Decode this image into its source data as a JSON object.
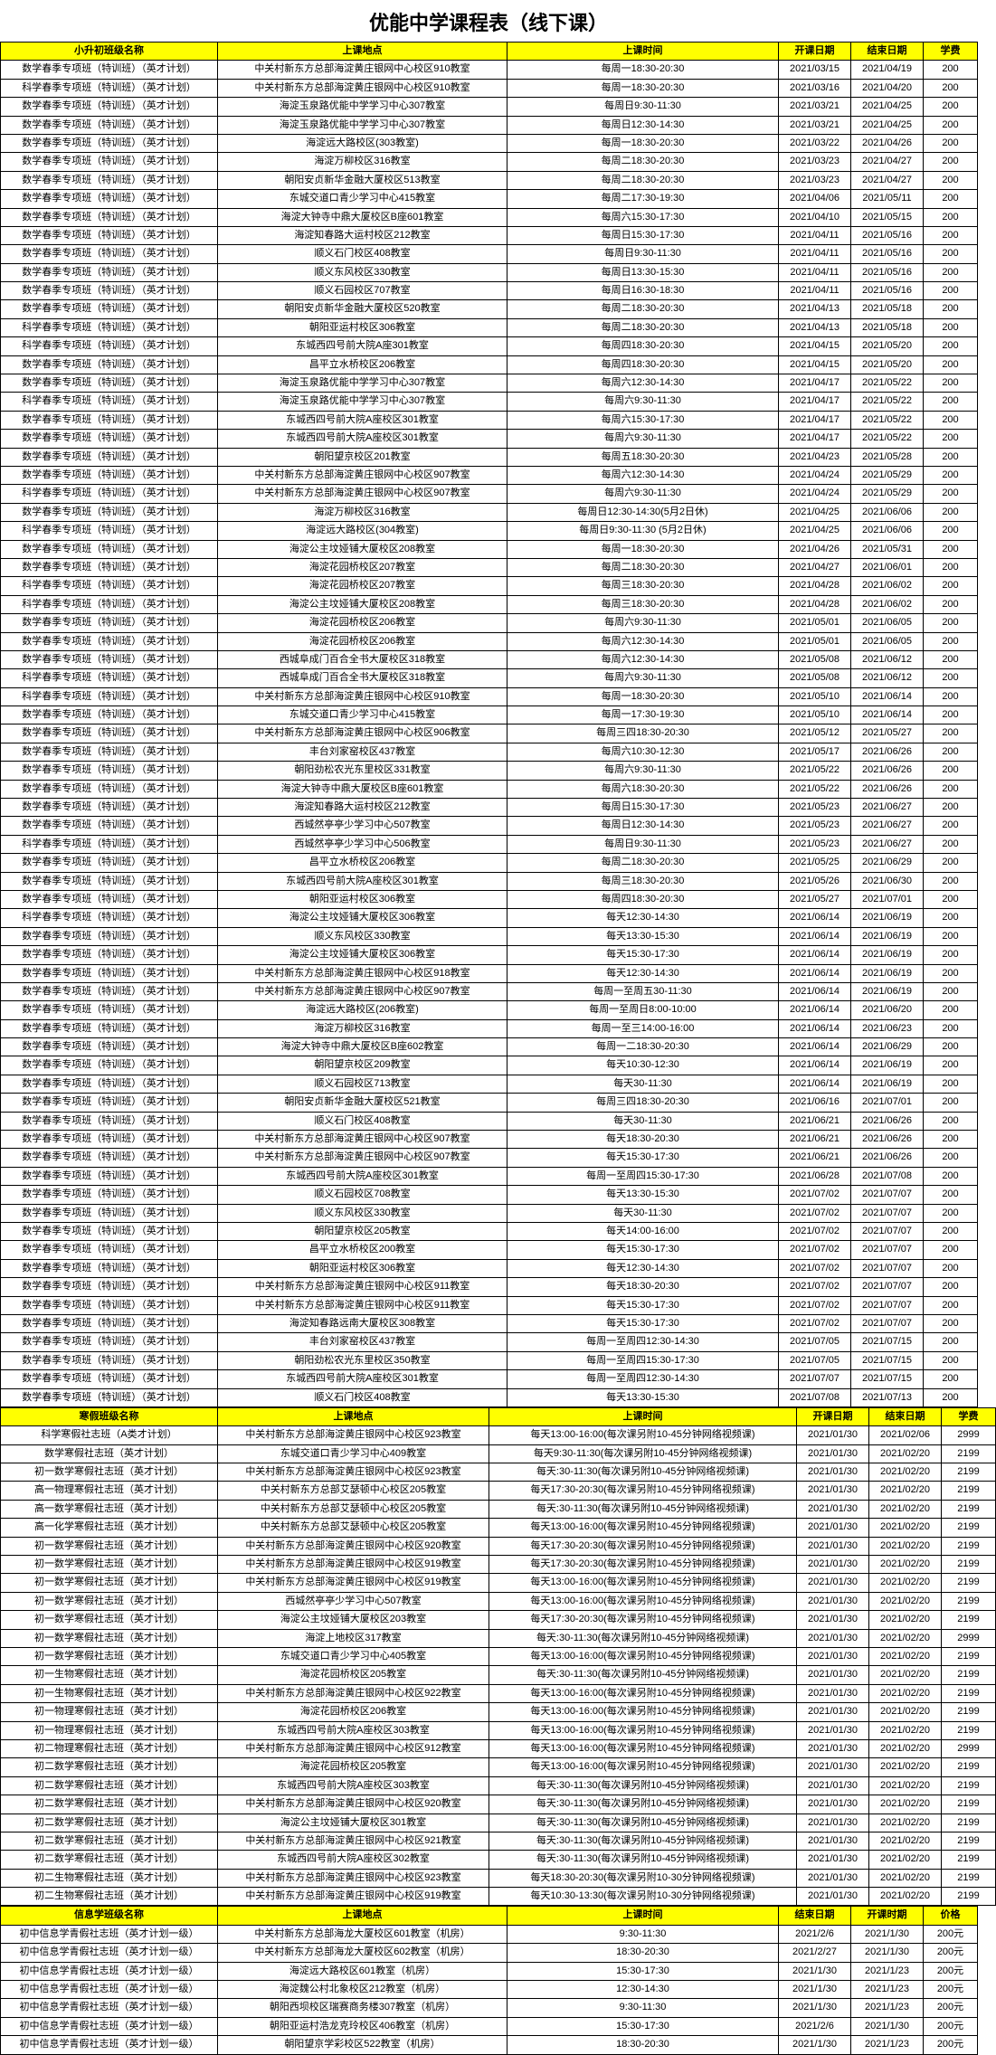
{
  "page_title": "优能中学课程表（线下课）",
  "sections": [
    {
      "headers": [
        "小升初班级名称",
        "上课地点",
        "上课时间",
        "开课日期",
        "结束日期",
        "学费"
      ],
      "rows": [
        [
          "数学春季专项班（特训班）（英才计划）",
          "中关村新东方总部海淀黄庄银网中心校区910教室",
          "每周一18:30-20:30",
          "2021/03/15",
          "2021/04/19",
          "200"
        ],
        [
          "科学春季专项班（特训班）（英才计划）",
          "中关村新东方总部海淀黄庄银网中心校区910教室",
          "每周一18:30-20:30",
          "2021/03/16",
          "2021/04/20",
          "200"
        ],
        [
          "数学春季专项班（特训班）（英才计划）",
          "海淀玉泉路优能中学学习中心307教室",
          "每周日9:30-11:30",
          "2021/03/21",
          "2021/04/25",
          "200"
        ],
        [
          "数学春季专项班（特训班）（英才计划）",
          "海淀玉泉路优能中学学习中心307教室",
          "每周日12:30-14:30",
          "2021/03/21",
          "2021/04/25",
          "200"
        ],
        [
          "数学春季专项班（特训班）（英才计划）",
          "海淀远大路校区(303教室)",
          "每周一18:30-20:30",
          "2021/03/22",
          "2021/04/26",
          "200"
        ],
        [
          "数学春季专项班（特训班）（英才计划）",
          "海淀万柳校区316教室",
          "每周二18:30-20:30",
          "2021/03/23",
          "2021/04/27",
          "200"
        ],
        [
          "数学春季专项班（特训班）（英才计划）",
          "朝阳安贞新华金融大厦校区513教室",
          "每周二18:30-20:30",
          "2021/03/23",
          "2021/04/27",
          "200"
        ],
        [
          "数学春季专项班（特训班）（英才计划）",
          "东城交道口青少学习中心415教室",
          "每周二17:30-19:30",
          "2021/04/06",
          "2021/05/11",
          "200"
        ],
        [
          "数学春季专项班（特训班）（英才计划）",
          "海淀大钟寺中鼎大厦校区B座601教室",
          "每周六15:30-17:30",
          "2021/04/10",
          "2021/05/15",
          "200"
        ],
        [
          "数学春季专项班（特训班）（英才计划）",
          "海淀知春路大运村校区212教室",
          "每周日15:30-17:30",
          "2021/04/11",
          "2021/05/16",
          "200"
        ],
        [
          "数学春季专项班（特训班）（英才计划）",
          "顺义石门校区408教室",
          "每周日9:30-11:30",
          "2021/04/11",
          "2021/05/16",
          "200"
        ],
        [
          "数学春季专项班（特训班）（英才计划）",
          "顺义东风校区330教室",
          "每周日13:30-15:30",
          "2021/04/11",
          "2021/05/16",
          "200"
        ],
        [
          "数学春季专项班（特训班）（英才计划）",
          "顺义石园校区707教室",
          "每周日16:30-18:30",
          "2021/04/11",
          "2021/05/16",
          "200"
        ],
        [
          "数学春季专项班（特训班）（英才计划）",
          "朝阳安贞新华金融大厦校区520教室",
          "每周二18:30-20:30",
          "2021/04/13",
          "2021/05/18",
          "200"
        ],
        [
          "科学春季专项班（特训班）（英才计划）",
          "朝阳亚运村校区306教室",
          "每周二18:30-20:30",
          "2021/04/13",
          "2021/05/18",
          "200"
        ],
        [
          "科学春季专项班（特训班）（英才计划）",
          "东城西四号前大院A座301教室",
          "每周四18:30-20:30",
          "2021/04/15",
          "2021/05/20",
          "200"
        ],
        [
          "数学春季专项班（特训班）（英才计划）",
          "昌平立水桥校区206教室",
          "每周四18:30-20:30",
          "2021/04/15",
          "2021/05/20",
          "200"
        ],
        [
          "数学春季专项班（特训班）（英才计划）",
          "海淀玉泉路优能中学学习中心307教室",
          "每周六12:30-14:30",
          "2021/04/17",
          "2021/05/22",
          "200"
        ],
        [
          "科学春季专项班（特训班）（英才计划）",
          "海淀玉泉路优能中学学习中心307教室",
          "每周六9:30-11:30",
          "2021/04/17",
          "2021/05/22",
          "200"
        ],
        [
          "数学春季专项班（特训班）（英才计划）",
          "东城西四号前大院A座校区301教室",
          "每周六15:30-17:30",
          "2021/04/17",
          "2021/05/22",
          "200"
        ],
        [
          "数学春季专项班（特训班）（英才计划）",
          "东城西四号前大院A座校区301教室",
          "每周六9:30-11:30",
          "2021/04/17",
          "2021/05/22",
          "200"
        ],
        [
          "数学春季专项班（特训班）（英才计划）",
          "朝阳望京校区201教室",
          "每周五18:30-20:30",
          "2021/04/23",
          "2021/05/28",
          "200"
        ],
        [
          "数学春季专项班（特训班）（英才计划）",
          "中关村新东方总部海淀黄庄银网中心校区907教室",
          "每周六12:30-14:30",
          "2021/04/24",
          "2021/05/29",
          "200"
        ],
        [
          "科学春季专项班（特训班）（英才计划）",
          "中关村新东方总部海淀黄庄银网中心校区907教室",
          "每周六9:30-11:30",
          "2021/04/24",
          "2021/05/29",
          "200"
        ],
        [
          "数学春季专项班（特训班）（英才计划）",
          "海淀万柳校区316教室",
          "每周日12:30-14:30(5月2日休)",
          "2021/04/25",
          "2021/06/06",
          "200"
        ],
        [
          "科学春季专项班（特训班）（英才计划）",
          "海淀远大路校区(304教室)",
          "每周日9:30-11:30 (5月2日休)",
          "2021/04/25",
          "2021/06/06",
          "200"
        ],
        [
          "数学春季专项班（特训班）（英才计划）",
          "海淀公主坟娅铺大厦校区208教室",
          "每周一18:30-20:30",
          "2021/04/26",
          "2021/05/31",
          "200"
        ],
        [
          "数学春季专项班（特训班）（英才计划）",
          "海淀花园桥校区207教室",
          "每周二18:30-20:30",
          "2021/04/27",
          "2021/06/01",
          "200"
        ],
        [
          "科学春季专项班（特训班）（英才计划）",
          "海淀花园桥校区207教室",
          "每周三18:30-20:30",
          "2021/04/28",
          "2021/06/02",
          "200"
        ],
        [
          "科学春季专项班（特训班）（英才计划）",
          "海淀公主坟娅铺大厦校区208教室",
          "每周三18:30-20:30",
          "2021/04/28",
          "2021/06/02",
          "200"
        ],
        [
          "数学春季专项班（特训班）（英才计划）",
          "海淀花园桥校区206教室",
          "每周六9:30-11:30",
          "2021/05/01",
          "2021/06/05",
          "200"
        ],
        [
          "数学春季专项班（特训班）（英才计划）",
          "海淀花园桥校区206教室",
          "每周六12:30-14:30",
          "2021/05/01",
          "2021/06/05",
          "200"
        ],
        [
          "数学春季专项班（特训班）（英才计划）",
          "西城阜成门百合全书大厦校区318教室",
          "每周六12:30-14:30",
          "2021/05/08",
          "2021/06/12",
          "200"
        ],
        [
          "科学春季专项班（特训班）（英才计划）",
          "西城阜成门百合全书大厦校区318教室",
          "每周六9:30-11:30",
          "2021/05/08",
          "2021/06/12",
          "200"
        ],
        [
          "科学春季专项班（特训班）（英才计划）",
          "中关村新东方总部海淀黄庄银网中心校区910教室",
          "每周一18:30-20:30",
          "2021/05/10",
          "2021/06/14",
          "200"
        ],
        [
          "数学春季专项班（特训班）（英才计划）",
          "东城交道口青少学习中心415教室",
          "每周一17:30-19:30",
          "2021/05/10",
          "2021/06/14",
          "200"
        ],
        [
          "数学春季专项班（特训班）（英才计划）",
          "中关村新东方总部海淀黄庄银网中心校区906教室",
          "每周三四18:30-20:30",
          "2021/05/12",
          "2021/05/27",
          "200"
        ],
        [
          "数学春季专项班（特训班）（英才计划）",
          "丰台刘家窑校区437教室",
          "每周六10:30-12:30",
          "2021/05/17",
          "2021/06/26",
          "200"
        ],
        [
          "数学春季专项班（特训班）（英才计划）",
          "朝阳劲松农光东里校区331教室",
          "每周六9:30-11:30",
          "2021/05/22",
          "2021/06/26",
          "200"
        ],
        [
          "数学春季专项班（特训班）（英才计划）",
          "海淀大钟寺中鼎大厦校区B座601教室",
          "每周六18:30-20:30",
          "2021/05/22",
          "2021/06/26",
          "200"
        ],
        [
          "数学春季专项班（特训班）（英才计划）",
          "海淀知春路大运村校区212教室",
          "每周日15:30-17:30",
          "2021/05/23",
          "2021/06/27",
          "200"
        ],
        [
          "数学春季专项班（特训班）（英才计划）",
          "西城然亭亭少学习中心507教室",
          "每周日12:30-14:30",
          "2021/05/23",
          "2021/06/27",
          "200"
        ],
        [
          "科学春季专项班（特训班）（英才计划）",
          "西城然亭亭少学习中心506教室",
          "每周日9:30-11:30",
          "2021/05/23",
          "2021/06/27",
          "200"
        ],
        [
          "数学春季专项班（特训班）（英才计划）",
          "昌平立水桥校区206教室",
          "每周二18:30-20:30",
          "2021/05/25",
          "2021/06/29",
          "200"
        ],
        [
          "数学春季专项班（特训班）（英才计划）",
          "东城西四号前大院A座校区301教室",
          "每周三18:30-20:30",
          "2021/05/26",
          "2021/06/30",
          "200"
        ],
        [
          "数学春季专项班（特训班）（英才计划）",
          "朝阳亚运村校区306教室",
          "每周四18:30-20:30",
          "2021/05/27",
          "2021/07/01",
          "200"
        ],
        [
          "科学春季专项班（特训班）（英才计划）",
          "海淀公主坟娅铺大厦校区306教室",
          "每天12:30-14:30",
          "2021/06/14",
          "2021/06/19",
          "200"
        ],
        [
          "数学春季专项班（特训班）（英才计划）",
          "顺义东风校区330教室",
          "每天13:30-15:30",
          "2021/06/14",
          "2021/06/19",
          "200"
        ],
        [
          "数学春季专项班（特训班）（英才计划）",
          "海淀公主坟娅铺大厦校区306教室",
          "每天15:30-17:30",
          "2021/06/14",
          "2021/06/19",
          "200"
        ],
        [
          "数学春季专项班（特训班）（英才计划）",
          "中关村新东方总部海淀黄庄银网中心校区918教室",
          "每天12:30-14:30",
          "2021/06/14",
          "2021/06/19",
          "200"
        ],
        [
          "数学春季专项班（特训班）（英才计划）",
          "中关村新东方总部海淀黄庄银网中心校区907教室",
          "每周一至周五30-11:30",
          "2021/06/14",
          "2021/06/19",
          "200"
        ],
        [
          "数学春季专项班（特训班）（英才计划）",
          "海淀远大路校区(206教室)",
          "每周一至周日8:00-10:00",
          "2021/06/14",
          "2021/06/20",
          "200"
        ],
        [
          "数学春季专项班（特训班）（英才计划）",
          "海淀万柳校区316教室",
          "每周一至三14:00-16:00",
          "2021/06/14",
          "2021/06/23",
          "200"
        ],
        [
          "数学春季专项班（特训班）（英才计划）",
          "海淀大钟寺中鼎大厦校区B座602教室",
          "每周一二18:30-20:30",
          "2021/06/14",
          "2021/06/29",
          "200"
        ],
        [
          "数学春季专项班（特训班）（英才计划）",
          "朝阳望京校区209教室",
          "每天10:30-12:30",
          "2021/06/14",
          "2021/06/19",
          "200"
        ],
        [
          "数学春季专项班（特训班）（英才计划）",
          "顺义石园校区713教室",
          "每天30-11:30",
          "2021/06/14",
          "2021/06/19",
          "200"
        ],
        [
          "数学春季专项班（特训班）（英才计划）",
          "朝阳安贞新华金融大厦校区521教室",
          "每周三四18:30-20:30",
          "2021/06/16",
          "2021/07/01",
          "200"
        ],
        [
          "数学春季专项班（特训班）（英才计划）",
          "顺义石门校区408教室",
          "每天30-11:30",
          "2021/06/21",
          "2021/06/26",
          "200"
        ],
        [
          "数学春季专项班（特训班）（英才计划）",
          "中关村新东方总部海淀黄庄银网中心校区907教室",
          "每天18:30-20:30",
          "2021/06/21",
          "2021/06/26",
          "200"
        ],
        [
          "数学春季专项班（特训班）（英才计划）",
          "中关村新东方总部海淀黄庄银网中心校区907教室",
          "每天15:30-17:30",
          "2021/06/21",
          "2021/06/26",
          "200"
        ],
        [
          "数学春季专项班（特训班）（英才计划）",
          "东城西四号前大院A座校区301教室",
          "每周一至周四15:30-17:30",
          "2021/06/28",
          "2021/07/08",
          "200"
        ],
        [
          "数学春季专项班（特训班）（英才计划）",
          "顺义石园校区708教室",
          "每天13:30-15:30",
          "2021/07/02",
          "2021/07/07",
          "200"
        ],
        [
          "数学春季专项班（特训班）（英才计划）",
          "顺义东风校区330教室",
          "每天30-11:30",
          "2021/07/02",
          "2021/07/07",
          "200"
        ],
        [
          "数学春季专项班（特训班）（英才计划）",
          "朝阳望京校区205教室",
          "每天14:00-16:00",
          "2021/07/02",
          "2021/07/07",
          "200"
        ],
        [
          "数学春季专项班（特训班）（英才计划）",
          "昌平立水桥校区200教室",
          "每天15:30-17:30",
          "2021/07/02",
          "2021/07/07",
          "200"
        ],
        [
          "数学春季专项班（特训班）（英才计划）",
          "朝阳亚运村校区306教室",
          "每天12:30-14:30",
          "2021/07/02",
          "2021/07/07",
          "200"
        ],
        [
          "数学春季专项班（特训班）（英才计划）",
          "中关村新东方总部海淀黄庄银网中心校区911教室",
          "每天18:30-20:30",
          "2021/07/02",
          "2021/07/07",
          "200"
        ],
        [
          "数学春季专项班（特训班）（英才计划）",
          "中关村新东方总部海淀黄庄银网中心校区911教室",
          "每天15:30-17:30",
          "2021/07/02",
          "2021/07/07",
          "200"
        ],
        [
          "数学春季专项班（特训班）（英才计划）",
          "海淀知春路远南大厦校区308教室",
          "每天15:30-17:30",
          "2021/07/02",
          "2021/07/07",
          "200"
        ],
        [
          "数学春季专项班（特训班）（英才计划）",
          "丰台刘家窑校区437教室",
          "每周一至周四12:30-14:30",
          "2021/07/05",
          "2021/07/15",
          "200"
        ],
        [
          "数学春季专项班（特训班）（英才计划）",
          "朝阳劲松农光东里校区350教室",
          "每周一至周四15:30-17:30",
          "2021/07/05",
          "2021/07/15",
          "200"
        ],
        [
          "数学春季专项班（特训班）（英才计划）",
          "东城西四号前大院A座校区301教室",
          "每周一至周四12:30-14:30",
          "2021/07/07",
          "2021/07/15",
          "200"
        ],
        [
          "数学春季专项班（特训班）（英才计划）",
          "顺义石门校区408教室",
          "每天13:30-15:30",
          "2021/07/08",
          "2021/07/13",
          "200"
        ]
      ]
    },
    {
      "headers": [
        "寒假班级名称",
        "上课地点",
        "上课时间",
        "开课日期",
        "结束日期",
        "学费"
      ],
      "rows": [
        [
          "科学寒假社志班（A类才计划）",
          "中关村新东方总部海淀黄庄银网中心校区923教室",
          "每天13:00-16:00(每次课另附10-45分钟网络视频课)",
          "2021/01/30",
          "2021/02/06",
          "2999"
        ],
        [
          "数学寒假社志班（英才计划）",
          "东城交道口青少学习中心409教室",
          "每天9:30-11:30(每次课另附10-45分钟网络视频课)",
          "2021/01/30",
          "2021/02/20",
          "2199"
        ],
        [
          "初一数学寒假社志班（英才计划）",
          "中关村新东方总部海淀黄庄银网中心校区923教室",
          "每天:30-11:30(每次课另附10-45分钟网络视频课)",
          "2021/01/30",
          "2021/02/20",
          "2199"
        ],
        [
          "高一物理寒假社志班（英才计划）",
          "中关村新东方总部艾瑟顿中心校区205教室",
          "每天17:30-20:30(每次课另附10-45分钟网络视频课)",
          "2021/01/30",
          "2021/02/20",
          "2199"
        ],
        [
          "高一数学寒假社志班（英才计划）",
          "中关村新东方总部艾瑟顿中心校区205教室",
          "每天:30-11:30(每次课另附10-45分钟网络视频课)",
          "2021/01/30",
          "2021/02/20",
          "2199"
        ],
        [
          "高一化学寒假社志班（英才计划）",
          "中关村新东方总部艾瑟顿中心校区205教室",
          "每天13:00-16:00(每次课另附10-45分钟网络视频课)",
          "2021/01/30",
          "2021/02/20",
          "2199"
        ],
        [
          "初一数学寒假社志班（英才计划）",
          "中关村新东方总部海淀黄庄银网中心校区920教室",
          "每天17:30-20:30(每次课另附10-45分钟网络视频课)",
          "2021/01/30",
          "2021/02/20",
          "2199"
        ],
        [
          "初一数学寒假社志班（英才计划）",
          "中关村新东方总部海淀黄庄银网中心校区919教室",
          "每天17:30-20:30(每次课另附10-45分钟网络视频课)",
          "2021/01/30",
          "2021/02/20",
          "2199"
        ],
        [
          "初一数学寒假社志班（英才计划）",
          "中关村新东方总部海淀黄庄银网中心校区919教室",
          "每天13:00-16:00(每次课另附10-45分钟网络视频课)",
          "2021/01/30",
          "2021/02/20",
          "2199"
        ],
        [
          "初一数学寒假社志班（英才计划）",
          "西城然亭亭少学习中心507教室",
          "每天13:00-16:00(每次课另附10-45分钟网络视频课)",
          "2021/01/30",
          "2021/02/20",
          "2199"
        ],
        [
          "初一数学寒假社志班（英才计划）",
          "海淀公主坟娅铺大厦校区203教室",
          "每天17:30-20:30(每次课另附10-45分钟网络视频课)",
          "2021/01/30",
          "2021/02/20",
          "2199"
        ],
        [
          "初一数学寒假社志班（英才计划）",
          "海淀上地校区317教室",
          "每天:30-11:30(每次课另附10-45分钟网络视频课)",
          "2021/01/30",
          "2021/02/20",
          "2999"
        ],
        [
          "初一数学寒假社志班（英才计划）",
          "东城交道口青少学习中心405教室",
          "每天13:00-16:00(每次课另附10-45分钟网络视频课)",
          "2021/01/30",
          "2021/02/20",
          "2199"
        ],
        [
          "初一生物寒假社志班（英才计划）",
          "海淀花园桥校区205教室",
          "每天:30-11:30(每次课另附10-45分钟网络视频课)",
          "2021/01/30",
          "2021/02/20",
          "2199"
        ],
        [
          "初一生物寒假社志班（英才计划）",
          "中关村新东方总部海淀黄庄银网中心校区922教室",
          "每天13:00-16:00(每次课另附10-45分钟网络视频课)",
          "2021/01/30",
          "2021/02/20",
          "2199"
        ],
        [
          "初一物理寒假社志班（英才计划）",
          "海淀花园桥校区206教室",
          "每天13:00-16:00(每次课另附10-45分钟网络视频课)",
          "2021/01/30",
          "2021/02/20",
          "2199"
        ],
        [
          "初一物理寒假社志班（英才计划）",
          "东城西四号前大院A座校区303教室",
          "每天13:00-16:00(每次课另附10-45分钟网络视频课)",
          "2021/01/30",
          "2021/02/20",
          "2199"
        ],
        [
          "初二物理寒假社志班（英才计划）",
          "中关村新东方总部海淀黄庄银网中心校区912教室",
          "每天13:00-16:00(每次课另附10-45分钟网络视频课)",
          "2021/01/30",
          "2021/02/20",
          "2999"
        ],
        [
          "初二数学寒假社志班（英才计划）",
          "海淀花园桥校区205教室",
          "每天13:00-16:00(每次课另附10-45分钟网络视频课)",
          "2021/01/30",
          "2021/02/20",
          "2199"
        ],
        [
          "初二数学寒假社志班（英才计划）",
          "东城西四号前大院A座校区303教室",
          "每天:30-11:30(每次课另附10-45分钟网络视频课)",
          "2021/01/30",
          "2021/02/20",
          "2199"
        ],
        [
          "初二数学寒假社志班（英才计划）",
          "中关村新东方总部海淀黄庄银网中心校区920教室",
          "每天:30-11:30(每次课另附10-45分钟网络视频课)",
          "2021/01/30",
          "2021/02/20",
          "2199"
        ],
        [
          "初二数学寒假社志班（英才计划）",
          "海淀公主坟娅铺大厦校区301教室",
          "每天:30-11:30(每次课另附10-45分钟网络视频课)",
          "2021/01/30",
          "2021/02/20",
          "2199"
        ],
        [
          "初二数学寒假社志班（英才计划）",
          "中关村新东方总部海淀黄庄银网中心校区921教室",
          "每天:30-11:30(每次课另附10-45分钟网络视频课)",
          "2021/01/30",
          "2021/02/20",
          "2199"
        ],
        [
          "初二数学寒假社志班（英才计划）",
          "东城西四号前大院A座校区302教室",
          "每天:30-11:30(每次课另附10-45分钟网络视频课)",
          "2021/01/30",
          "2021/02/20",
          "2199"
        ],
        [
          "初二生物寒假社志班（英才计划）",
          "中关村新东方总部海淀黄庄银网中心校区923教室",
          "每天18:30-20:30(每次课另附10-30分钟网络视频课)",
          "2021/01/30",
          "2021/02/20",
          "2199"
        ],
        [
          "初二生物寒假社志班（英才计划）",
          "中关村新东方总部海淀黄庄银网中心校区919教室",
          "每天10:30-13:30(每次课另附10-30分钟网络视频课)",
          "2021/01/30",
          "2021/02/20",
          "2199"
        ]
      ]
    },
    {
      "headers": [
        "信息学班级名称",
        "上课地点",
        "上课时间",
        "结束日期",
        "开课时期",
        "价格"
      ],
      "rows": [
        [
          "初中信息学青假社志班（英才计划一级）",
          "中关村新东方总部海龙大厦校区601教室（机房）",
          "9:30-11:30",
          "2021/2/6",
          "2021/1/30",
          "200元"
        ],
        [
          "初中信息学青假社志班（英才计划一级）",
          "中关村新东方总部海龙大厦校区602教室（机房）",
          "18:30-20:30",
          "2021/2/27",
          "2021/1/30",
          "200元"
        ],
        [
          "初中信息学青假社志班（英才计划一级）",
          "海淀远大路校区601教室（机房）",
          "15:30-17:30",
          "2021/1/30",
          "2021/1/23",
          "200元"
        ],
        [
          "初中信息学青假社志班（英才计划一级）",
          "海淀魏公村北象校区212教室（机房）",
          "12:30-14:30",
          "2021/1/30",
          "2021/1/23",
          "200元"
        ],
        [
          "初中信息学青假社志班（英才计划一级）",
          "朝阳西坝校区瑞赛商务楼307教室（机房）",
          "9:30-11:30",
          "2021/1/30",
          "2021/1/23",
          "200元"
        ],
        [
          "初中信息学青假社志班（英才计划一级）",
          "朝阳亚运村浩龙克玲校区406教室（机房）",
          "15:30-17:30",
          "2021/2/6",
          "2021/1/30",
          "200元"
        ],
        [
          "初中信息学青假社志班（英才计划一级）",
          "朝阳望京学彩校区522教室（机房）",
          "18:30-20:30",
          "2021/1/30",
          "2021/1/23",
          "200元"
        ]
      ]
    }
  ]
}
